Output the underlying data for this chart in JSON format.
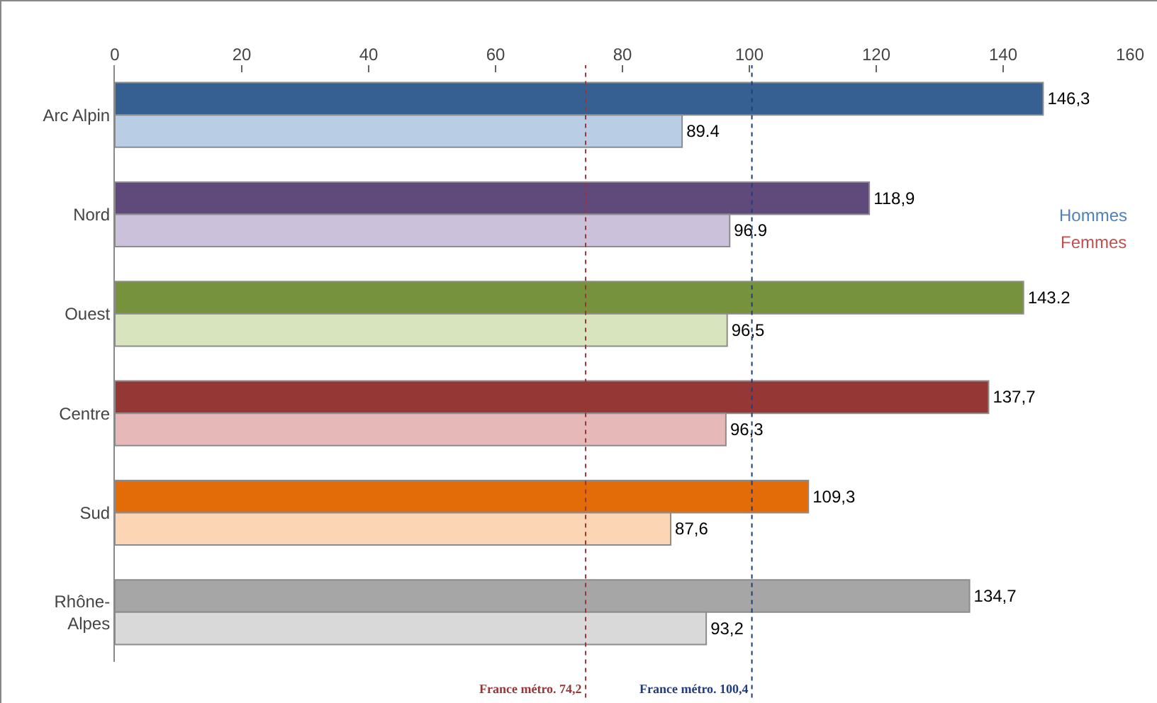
{
  "chart_data": {
    "type": "bar",
    "orientation": "horizontal",
    "categories": [
      "Arc Alpin",
      "Nord",
      "Ouest",
      "Centre",
      "Sud",
      "Rhône-Alpes"
    ],
    "series": [
      {
        "name": "Hommes",
        "color": "#4f81bd",
        "colors": [
          "#366092",
          "#604a7b",
          "#76923c",
          "#953735",
          "#e36c09",
          "#a6a6a6"
        ],
        "values": [
          146.3,
          118.9,
          143.2,
          137.7,
          109.3,
          134.7
        ],
        "value_labels": [
          "146,3",
          "118,9",
          "143.2",
          "137,7",
          "109,3",
          "134,7"
        ]
      },
      {
        "name": "Femmes",
        "color": "#c0504d",
        "colors": [
          "#b9cde5",
          "#ccc1da",
          "#d7e4bd",
          "#e6b9b8",
          "#fcd5b5",
          "#d9d9d9"
        ],
        "values": [
          89.4,
          96.9,
          96.5,
          96.3,
          87.6,
          93.2
        ],
        "value_labels": [
          "89.4",
          "96.9",
          "96,5",
          "96,3",
          "87,6",
          "93,2"
        ]
      }
    ],
    "xlim": [
      0,
      160
    ],
    "xticks": [
      0,
      20,
      40,
      60,
      80,
      100,
      120,
      140,
      160
    ],
    "ref_lines": [
      {
        "axis": "x",
        "value": 74.2,
        "label": "France métro. 74,2",
        "color": "#953735",
        "line_style": "dotted"
      },
      {
        "axis": "x",
        "value": 100.4,
        "label": "France métro. 100,4",
        "color": "#1f3d7a",
        "line_style": "dotted"
      }
    ],
    "grid": false,
    "legend": "right"
  }
}
